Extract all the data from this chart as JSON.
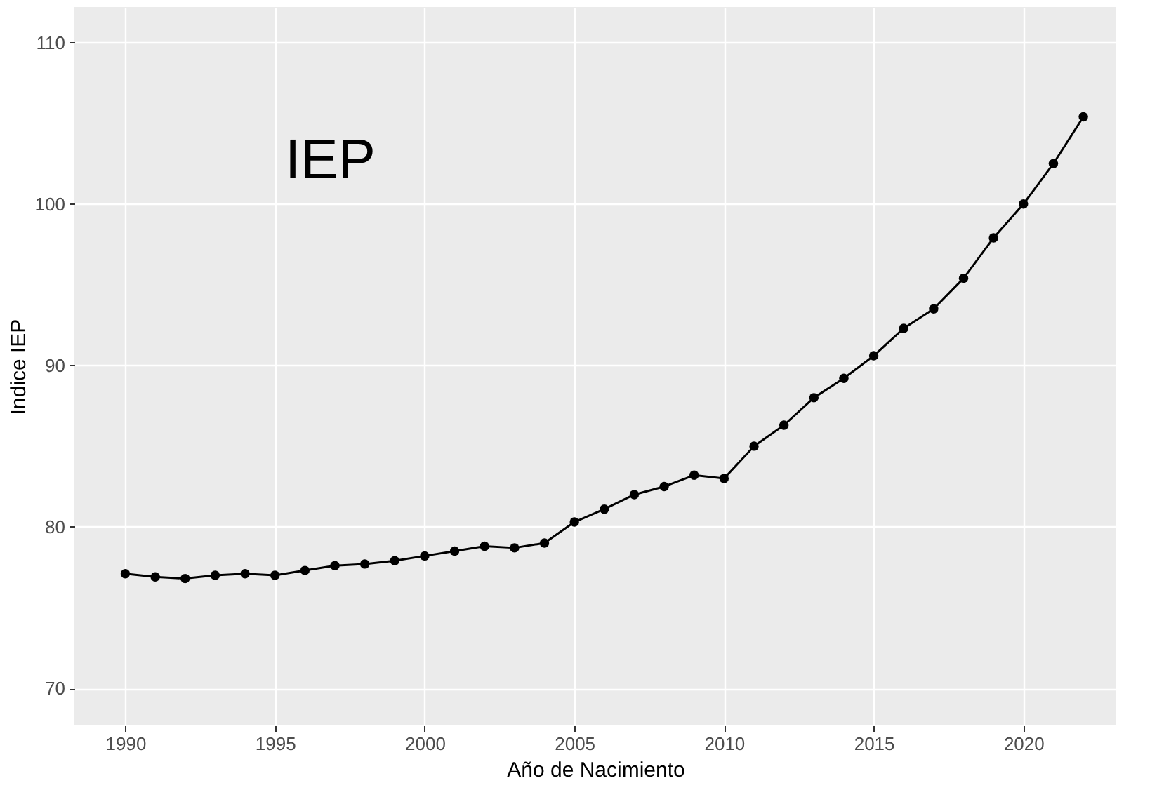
{
  "chart_data": {
    "type": "line",
    "xlabel": "Año de Nacimiento",
    "ylabel": "Indice IEP",
    "annotations": [
      "IEP"
    ],
    "x": [
      1990,
      1991,
      1992,
      1993,
      1994,
      1995,
      1996,
      1997,
      1998,
      1999,
      2000,
      2001,
      2002,
      2003,
      2004,
      2005,
      2006,
      2007,
      2008,
      2009,
      2010,
      2011,
      2012,
      2013,
      2014,
      2015,
      2016,
      2017,
      2018,
      2019,
      2020,
      2021,
      2022
    ],
    "series": [
      {
        "color": "#000000",
        "values": [
          77.1,
          76.9,
          76.8,
          77.0,
          77.1,
          77.0,
          77.3,
          77.6,
          77.7,
          77.9,
          78.2,
          78.5,
          78.8,
          78.7,
          79.0,
          80.3,
          81.1,
          82.0,
          82.5,
          83.2,
          83.0,
          85.0,
          86.3,
          88.0,
          89.2,
          90.6,
          92.3,
          93.5,
          95.4,
          97.9,
          100.0,
          102.5,
          105.4
        ]
      }
    ],
    "xlim": [
      1988.3,
      2023.1
    ],
    "ylim": [
      67.7,
      112.2
    ],
    "xticks": [
      1990,
      1995,
      2000,
      2005,
      2010,
      2015,
      2020
    ],
    "yticks": [
      70,
      80,
      90,
      100,
      110
    ],
    "grid": true,
    "marker": "circle",
    "line_style": "solid"
  }
}
